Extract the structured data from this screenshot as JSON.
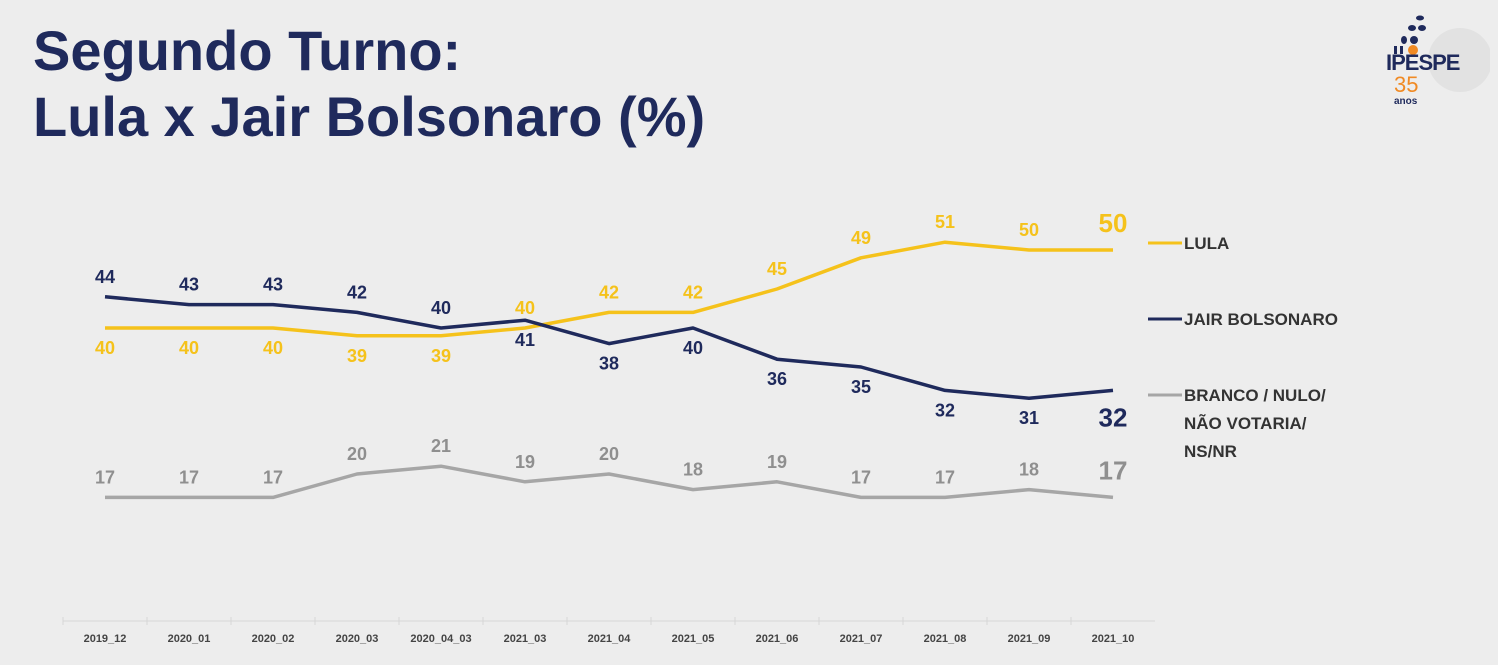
{
  "header": {
    "line1": "Segundo Turno:",
    "line2": "Lula x Jair Bolsonaro (%)"
  },
  "logo": {
    "name": "IPESPE",
    "years": "35",
    "anos": "anos"
  },
  "chart_data": {
    "type": "line",
    "title": "Segundo Turno: Lula x Jair Bolsonaro (%)",
    "categories": [
      "2019_12",
      "2020_01",
      "2020_02",
      "2020_03",
      "2020_04_03",
      "2021_03",
      "2021_04",
      "2021_05",
      "2021_06",
      "2021_07",
      "2021_08",
      "2021_09",
      "2021_10"
    ],
    "series": [
      {
        "name": "LULA",
        "color": "#f5c21b",
        "values": [
          40,
          40,
          40,
          39,
          39,
          40,
          42,
          42,
          45,
          49,
          51,
          50,
          50
        ]
      },
      {
        "name": "JAIR BOLSONARO",
        "color": "#1f2a5c",
        "values": [
          44,
          43,
          43,
          42,
          40,
          41,
          38,
          40,
          36,
          35,
          32,
          31,
          32
        ]
      },
      {
        "name": "BRANCO / NULO/ NÃO VOTARIA/ NS/NR",
        "legend_lines": [
          "BRANCO / NULO/",
          "NÃO VOTARIA/",
          "NS/NR"
        ],
        "color": "#a6a6a6",
        "values": [
          17,
          17,
          17,
          20,
          21,
          19,
          20,
          18,
          19,
          17,
          17,
          18,
          17
        ]
      }
    ],
    "legend": "right",
    "grid": false
  }
}
